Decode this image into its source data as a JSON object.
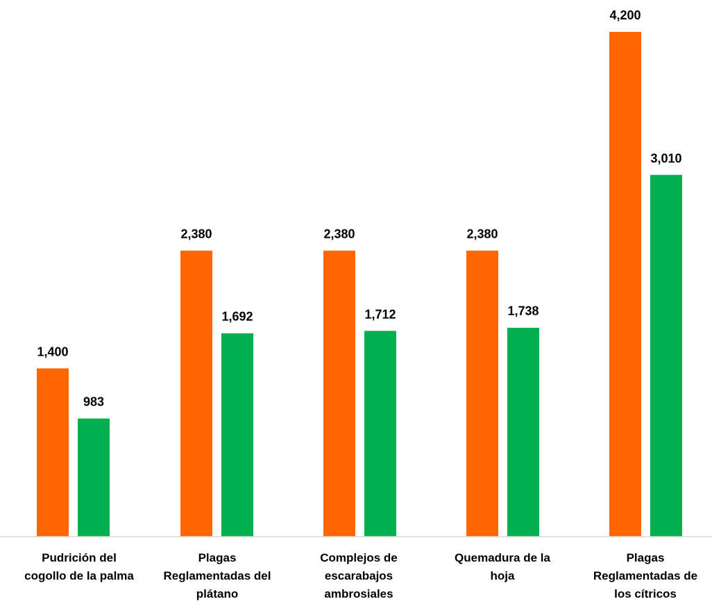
{
  "chart_data": {
    "type": "bar",
    "title": "",
    "xlabel": "",
    "ylabel": "",
    "ylim": [
      0,
      4200
    ],
    "grid": false,
    "legend": "none",
    "categories": [
      [
        "Pudrición del",
        "cogollo de la palma"
      ],
      [
        "Plagas",
        "Reglamentadas del",
        "plátano"
      ],
      [
        "Complejos de",
        "escarabajos",
        "ambrosiales"
      ],
      [
        "Quemadura de la",
        "hoja"
      ],
      [
        "Plagas",
        "Reglamentadas de",
        "los cítricos"
      ]
    ],
    "series": [
      {
        "color": "#ff6600",
        "values": [
          1400,
          2380,
          2380,
          2380,
          4200
        ],
        "labels": [
          "1,400",
          "2,380",
          "2,380",
          "2,380",
          "4,200"
        ]
      },
      {
        "color": "#00b050",
        "values": [
          983,
          1692,
          1712,
          1738,
          3010
        ],
        "labels": [
          "983",
          "1,692",
          "1,712",
          "1,738",
          "3,010"
        ]
      }
    ]
  }
}
